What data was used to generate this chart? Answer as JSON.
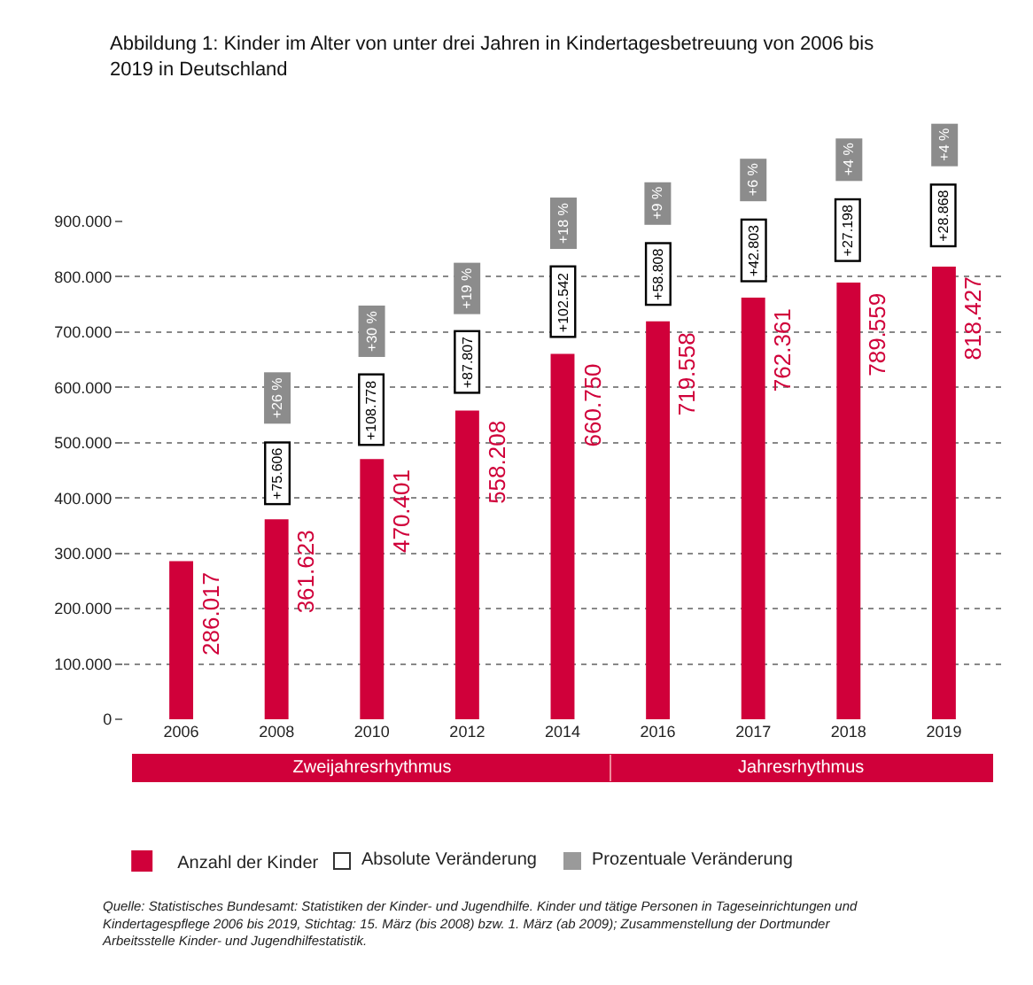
{
  "chart_data": {
    "type": "bar",
    "title": "Abbildung 1: Kinder im Alter von unter drei Jahren in Kindertagesbetreuung von 2006 bis 2019 in Deutschland",
    "categories": [
      "2006",
      "2008",
      "2010",
      "2012",
      "2014",
      "2016",
      "2017",
      "2018",
      "2019"
    ],
    "series": [
      {
        "name": "Anzahl der Kinder",
        "color": "#d0003a",
        "values": [
          286017,
          361623,
          470401,
          558208,
          660750,
          719558,
          762361,
          789559,
          818427
        ],
        "value_labels": [
          "286.017",
          "361.623",
          "470.401",
          "558.208",
          "660.750",
          "719.558",
          "762.361",
          "789.559",
          "818.427"
        ]
      }
    ],
    "ylim": [
      0,
      900000
    ],
    "yticks": [
      0,
      {
        "value": 100000,
        "label": "100.000"
      },
      {
        "value": 200000,
        "label": "200.000"
      },
      {
        "value": 300000,
        "label": "300.000"
      },
      {
        "value": 400000,
        "label": "400.000"
      },
      {
        "value": 500000,
        "label": "500.000"
      },
      {
        "value": 600000,
        "label": "600.000"
      },
      {
        "value": 700000,
        "label": "700.000"
      },
      {
        "value": 800000,
        "label": "800.000"
      },
      {
        "value": 900000,
        "label": "900.000"
      }
    ],
    "grid": "y",
    "legend": "bottom",
    "annotations": [
      "Absolute Veränderung",
      "Prozentuale Veränderung",
      "Zweijahresrhythmus",
      "Jahresrhythmus",
      "Quelle: Statistisches Bundesamt: Statistiken der Kinder- und Jugendhilfe. Kinder und tätige Personen in Tageseinrichtungen und Kindertagespflege 2006 bis 2019, Stichtag: 15. März (bis 2008) bzw. 1. März (ab 2009); Zusammenstellung der Dortmunder Arbeitsstelle Kinder- und Jugendhilfestatistik.",
      "+26 %",
      "+30 %",
      "+19 %",
      "+18 %",
      "+9 %",
      "+6 %",
      "+4 %",
      "+4 %",
      {
        "text": "+75.606",
        "x": "2008",
        "y": 445000
      },
      {
        "text": "+108.778",
        "x": "2010",
        "y": 561000
      },
      {
        "text": "+87.807",
        "x": "2012",
        "y": 645000
      },
      {
        "text": "+102.542",
        "x": "2014",
        "y": 755000
      },
      {
        "text": "+58.808",
        "x": "2016",
        "y": 806000
      },
      {
        "text": "+42.803",
        "x": "2017",
        "y": 848000
      },
      {
        "text": "+27.198",
        "x": "2018",
        "y": 884000
      },
      {
        "text": "+28.868",
        "x": "2019",
        "y": 910000
      }
    ]
  }
}
